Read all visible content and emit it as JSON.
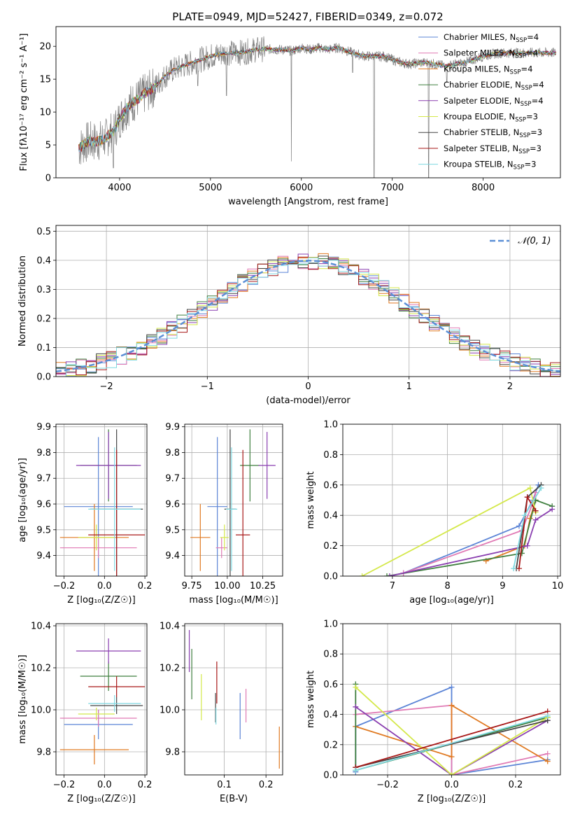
{
  "figure_title": "PLATE=0949, MJD=52427, FIBERID=0349, z=0.072",
  "colors": {
    "Chabrier MILES": "#5b84d6",
    "Salpeter MILES": "#e079b4",
    "Kroupa MILES": "#e07a22",
    "Chabrier ELODIE": "#3f7f3f",
    "Salpeter ELODIE": "#8a3fb0",
    "Kroupa ELODIE": "#d4e84a",
    "Chabrier STELIB": "#444444",
    "Salpeter STELIB": "#a81818",
    "Kroupa STELIB": "#7fd8e0",
    "data": "#808080",
    "grid": "#b0b0b0",
    "gaussian": "#5b8fd6"
  },
  "chart_data": [
    {
      "id": "spectrum",
      "type": "line",
      "title": "PLATE=0949, MJD=52427, FIBERID=0349, z=0.072",
      "xlabel": "wavelength [Angstrom, rest frame]",
      "ylabel": "Flux [fλ10⁻¹⁷ erg cm⁻² s⁻¹ A⁻¹]",
      "xlim": [
        3300,
        8850
      ],
      "ylim": [
        0,
        23
      ],
      "xticks": [
        4000,
        5000,
        6000,
        7000,
        8000
      ],
      "yticks": [
        0,
        5,
        10,
        15,
        20
      ],
      "grid": false,
      "legend_position": "right",
      "legend": [
        {
          "label": "Chabrier MILES, N",
          "sub": "SSP",
          "suffix": "=4",
          "model": "Chabrier MILES"
        },
        {
          "label": "Salpeter MILES, N",
          "sub": "SSP",
          "suffix": "=4",
          "model": "Salpeter MILES"
        },
        {
          "label": "Kroupa MILES, N",
          "sub": "SSP",
          "suffix": "=4",
          "model": "Kroupa MILES"
        },
        {
          "label": "Chabrier ELODIE, N",
          "sub": "SSP",
          "suffix": "=4",
          "model": "Chabrier ELODIE"
        },
        {
          "label": "Salpeter ELODIE, N",
          "sub": "SSP",
          "suffix": "=4",
          "model": "Salpeter ELODIE"
        },
        {
          "label": "Kroupa ELODIE, N",
          "sub": "SSP",
          "suffix": "=3",
          "model": "Kroupa ELODIE"
        },
        {
          "label": "Chabrier STELIB, N",
          "sub": "SSP",
          "suffix": "=3",
          "model": "Chabrier STELIB"
        },
        {
          "label": "Salpeter STELIB, N",
          "sub": "SSP",
          "suffix": "=3",
          "model": "Salpeter STELIB"
        },
        {
          "label": "Kroupa STELIB, N",
          "sub": "SSP",
          "suffix": "=3",
          "model": "Kroupa STELIB"
        }
      ],
      "continuum": {
        "x": [
          3550,
          3650,
          3750,
          3850,
          3950,
          4000,
          4100,
          4200,
          4300,
          4400,
          4500,
          4600,
          4700,
          4800,
          4900,
          5000,
          5100,
          5200,
          5300,
          5400,
          5500,
          5600,
          5700,
          5800,
          5900,
          6000,
          6100,
          6200,
          6300,
          6400,
          6500,
          6600,
          6700,
          6800,
          6900,
          7000,
          7100,
          7200,
          7300,
          7400,
          7500,
          7600,
          7700,
          7800,
          7900,
          8000,
          8100,
          8200,
          8300,
          8400,
          8500,
          8600,
          8700,
          8800
        ],
        "y": [
          4.5,
          5.5,
          5.5,
          6.0,
          7.5,
          9.0,
          11.0,
          12.0,
          13.0,
          14.0,
          15.5,
          16.5,
          17.0,
          17.5,
          18.0,
          18.5,
          18.8,
          19.0,
          19.0,
          19.2,
          19.5,
          19.6,
          19.5,
          19.5,
          19.3,
          19.8,
          19.5,
          19.8,
          19.5,
          19.8,
          19.3,
          18.8,
          18.5,
          18.5,
          18.5,
          18.0,
          17.5,
          17.3,
          17.5,
          17.5,
          17.2,
          17.0,
          17.3,
          17.5,
          18.0,
          18.5,
          18.8,
          19.0,
          19.0,
          19.0,
          19.0,
          19.0,
          19.0,
          19.0
        ]
      },
      "features": [
        {
          "x": 3933,
          "y": 1.5
        },
        {
          "x": 4861,
          "y": 14.0
        },
        {
          "x": 5175,
          "y": 12.5
        },
        {
          "x": 5890,
          "y": 2.5
        },
        {
          "x": 6563,
          "y": 16.0
        },
        {
          "x": 6800,
          "y": 0.0
        },
        {
          "x": 7400,
          "y": 0.0
        },
        {
          "x": 7600,
          "y": 14.5
        }
      ]
    },
    {
      "id": "residuals",
      "type": "histogram",
      "xlabel": "(data-model)/error",
      "ylabel": "Normed distribution",
      "xlim": [
        -2.5,
        2.5
      ],
      "ylim": [
        0,
        0.52
      ],
      "xticks": [
        -2,
        -1,
        0,
        1,
        2
      ],
      "yticks": [
        0.0,
        0.1,
        0.2,
        0.3,
        0.4,
        0.5
      ],
      "grid": true,
      "legend_position": "top-right",
      "gaussian_label": "𝒩(0, 1)",
      "bin_width": 0.1
    },
    {
      "id": "age-vs-Z",
      "type": "errorbar",
      "xlabel": "Z [log₁₀(Z/Z☉)]",
      "ylabel": "age  [log₁₀(age/yr)]",
      "xlim": [
        -0.24,
        0.21
      ],
      "ylim": [
        9.32,
        9.91
      ],
      "xticks": [
        -0.2,
        0.0,
        0.2
      ],
      "yticks": [
        9.4,
        9.5,
        9.6,
        9.7,
        9.8,
        9.9
      ],
      "grid": true,
      "points": [
        {
          "model": "Chabrier MILES",
          "x": -0.03,
          "xerr": 0.17,
          "y": 9.59,
          "yerr": 0.27
        },
        {
          "model": "Salpeter MILES",
          "x": -0.03,
          "xerr": 0.19,
          "y": 9.43,
          "yerr": 0.04
        },
        {
          "model": "Kroupa MILES",
          "x": -0.05,
          "xerr": 0.17,
          "y": 9.47,
          "yerr": 0.13
        },
        {
          "model": "Chabrier ELODIE",
          "x": 0.02,
          "xerr": 0.14,
          "y": 9.75,
          "yerr": 0.14
        },
        {
          "model": "Salpeter ELODIE",
          "x": 0.02,
          "xerr": 0.16,
          "y": 9.75,
          "yerr": 0.13
        },
        {
          "model": "Kroupa ELODIE",
          "x": -0.04,
          "xerr": 0.09,
          "y": 9.47,
          "yerr": 0.05
        },
        {
          "model": "Chabrier STELIB",
          "x": 0.06,
          "xerr": 0.13,
          "y": 9.58,
          "yerr": 0.31
        },
        {
          "model": "Salpeter STELIB",
          "x": 0.06,
          "xerr": 0.14,
          "y": 9.48,
          "yerr": 0.33
        },
        {
          "model": "Kroupa STELIB",
          "x": 0.05,
          "xerr": 0.13,
          "y": 9.58,
          "yerr": 0.24
        }
      ]
    },
    {
      "id": "age-vs-mass",
      "type": "errorbar",
      "xlabel": "mass [log₁₀(M/M☉)]",
      "ylabel": "",
      "xlim": [
        9.7,
        10.39
      ],
      "ylim": [
        9.32,
        9.91
      ],
      "xticks": [
        9.75,
        10.0,
        10.25
      ],
      "yticks": [
        9.4,
        9.5,
        9.6,
        9.7,
        9.8,
        9.9
      ],
      "grid": true,
      "points": [
        {
          "model": "Chabrier MILES",
          "x": 9.93,
          "xerr": 0.07,
          "y": 9.59,
          "yerr": 0.27
        },
        {
          "model": "Salpeter MILES",
          "x": 9.96,
          "xerr": 0.04,
          "y": 9.43,
          "yerr": 0.04
        },
        {
          "model": "Kroupa MILES",
          "x": 9.81,
          "xerr": 0.07,
          "y": 9.47,
          "yerr": 0.13
        },
        {
          "model": "Chabrier ELODIE",
          "x": 10.16,
          "xerr": 0.07,
          "y": 9.75,
          "yerr": 0.14
        },
        {
          "model": "Salpeter ELODIE",
          "x": 10.28,
          "xerr": 0.06,
          "y": 9.75,
          "yerr": 0.13
        },
        {
          "model": "Kroupa ELODIE",
          "x": 9.98,
          "xerr": 0.03,
          "y": 9.47,
          "yerr": 0.05
        },
        {
          "model": "Chabrier STELIB",
          "x": 10.02,
          "xerr": 0.04,
          "y": 9.58,
          "yerr": 0.31
        },
        {
          "model": "Salpeter STELIB",
          "x": 10.11,
          "xerr": 0.05,
          "y": 9.48,
          "yerr": 0.33
        },
        {
          "model": "Kroupa STELIB",
          "x": 10.03,
          "xerr": 0.04,
          "y": 9.58,
          "yerr": 0.24
        }
      ]
    },
    {
      "id": "mass-weight-vs-age",
      "type": "line",
      "xlabel": "age  [log₁₀(age/yr)]",
      "ylabel": "mass weight",
      "xlim": [
        6.1,
        10.05
      ],
      "ylim": [
        0,
        1.0
      ],
      "xticks": [
        7,
        8,
        9,
        10
      ],
      "yticks": [
        0.0,
        0.2,
        0.4,
        0.6,
        0.8,
        1.0
      ],
      "grid": true,
      "series": [
        {
          "model": "Chabrier MILES",
          "x": [
            7.2,
            9.3,
            9.55,
            9.65
          ],
          "y": [
            0.02,
            0.33,
            0.5,
            0.6
          ]
        },
        {
          "model": "Salpeter MILES",
          "x": [
            7.2,
            9.35,
            9.55,
            9.6
          ],
          "y": [
            0.02,
            0.3,
            0.48,
            0.55
          ]
        },
        {
          "model": "Kroupa MILES",
          "x": [
            8.7,
            9.4,
            9.5,
            9.6
          ],
          "y": [
            0.1,
            0.2,
            0.38,
            0.5
          ]
        },
        {
          "model": "Chabrier ELODIE",
          "x": [
            6.9,
            9.35,
            9.6,
            9.9
          ],
          "y": [
            0.0,
            0.15,
            0.5,
            0.46
          ]
        },
        {
          "model": "Salpeter ELODIE",
          "x": [
            6.95,
            9.45,
            9.6,
            9.9
          ],
          "y": [
            0.0,
            0.2,
            0.37,
            0.44
          ]
        },
        {
          "model": "Kroupa ELODIE",
          "x": [
            6.45,
            9.5,
            9.6
          ],
          "y": [
            0.0,
            0.58,
            0.42
          ]
        },
        {
          "model": "Chabrier STELIB",
          "x": [
            9.25,
            9.45,
            9.7
          ],
          "y": [
            0.05,
            0.52,
            0.6
          ]
        },
        {
          "model": "Salpeter STELIB",
          "x": [
            9.3,
            9.45,
            9.6
          ],
          "y": [
            0.05,
            0.52,
            0.43
          ]
        },
        {
          "model": "Kroupa STELIB",
          "x": [
            9.2,
            9.4,
            9.7
          ],
          "y": [
            0.05,
            0.4,
            0.58
          ]
        }
      ]
    },
    {
      "id": "mass-vs-Z",
      "type": "errorbar",
      "xlabel": "Z [log₁₀(Z/Z☉)]",
      "ylabel": "mass [log₁₀(M/M☉)]",
      "xlim": [
        -0.24,
        0.21
      ],
      "ylim": [
        9.69,
        10.41
      ],
      "xticks": [
        -0.2,
        0.0,
        0.2
      ],
      "yticks": [
        9.8,
        10.0,
        10.2,
        10.4
      ],
      "grid": true,
      "points": [
        {
          "model": "Chabrier MILES",
          "x": -0.03,
          "xerr": 0.17,
          "y": 9.93,
          "yerr": 0.07
        },
        {
          "model": "Salpeter MILES",
          "x": -0.03,
          "xerr": 0.19,
          "y": 9.96,
          "yerr": 0.04
        },
        {
          "model": "Kroupa MILES",
          "x": -0.05,
          "xerr": 0.17,
          "y": 9.81,
          "yerr": 0.07
        },
        {
          "model": "Chabrier ELODIE",
          "x": 0.02,
          "xerr": 0.14,
          "y": 10.16,
          "yerr": 0.07
        },
        {
          "model": "Salpeter ELODIE",
          "x": 0.02,
          "xerr": 0.16,
          "y": 10.28,
          "yerr": 0.06
        },
        {
          "model": "Kroupa ELODIE",
          "x": -0.04,
          "xerr": 0.09,
          "y": 9.98,
          "yerr": 0.03
        },
        {
          "model": "Chabrier STELIB",
          "x": 0.06,
          "xerr": 0.13,
          "y": 10.02,
          "yerr": 0.04
        },
        {
          "model": "Salpeter STELIB",
          "x": 0.06,
          "xerr": 0.14,
          "y": 10.11,
          "yerr": 0.05
        },
        {
          "model": "Kroupa STELIB",
          "x": 0.05,
          "xerr": 0.13,
          "y": 10.03,
          "yerr": 0.04
        }
      ]
    },
    {
      "id": "mass-vs-EBV",
      "type": "errorbar",
      "xlabel": "E(B-V)",
      "ylabel": "",
      "xlim": [
        0.005,
        0.24
      ],
      "ylim": [
        9.69,
        10.41
      ],
      "xticks": [
        0.1,
        0.2
      ],
      "yticks": [
        9.8,
        10.0,
        10.2,
        10.4
      ],
      "grid": true,
      "points": [
        {
          "model": "Chabrier MILES",
          "x": 0.138,
          "xerr": 0,
          "y": 9.97,
          "yerr": 0.11
        },
        {
          "model": "Salpeter MILES",
          "x": 0.152,
          "xerr": 0,
          "y": 10.02,
          "yerr": 0.08
        },
        {
          "model": "Kroupa MILES",
          "x": 0.232,
          "xerr": 0,
          "y": 9.82,
          "yerr": 0.1
        },
        {
          "model": "Chabrier ELODIE",
          "x": 0.022,
          "xerr": 0,
          "y": 10.17,
          "yerr": 0.12
        },
        {
          "model": "Salpeter ELODIE",
          "x": 0.016,
          "xerr": 0,
          "y": 10.28,
          "yerr": 0.1
        },
        {
          "model": "Kroupa ELODIE",
          "x": 0.045,
          "xerr": 0,
          "y": 10.06,
          "yerr": 0.11
        },
        {
          "model": "Chabrier STELIB",
          "x": 0.079,
          "xerr": 0,
          "y": 10.01,
          "yerr": 0.07
        },
        {
          "model": "Salpeter STELIB",
          "x": 0.082,
          "xerr": 0,
          "y": 10.13,
          "yerr": 0.1
        },
        {
          "model": "Kroupa STELIB",
          "x": 0.08,
          "xerr": 0,
          "y": 9.97,
          "yerr": 0.04
        }
      ]
    },
    {
      "id": "mass-weight-vs-Z",
      "type": "line",
      "xlabel": "Z [log₁₀(Z/Z☉)]",
      "ylabel": "mass weight",
      "xlim": [
        -0.34,
        0.34
      ],
      "ylim": [
        0,
        1.0
      ],
      "xticks": [
        -0.2,
        0.0,
        0.2
      ],
      "yticks": [
        0.0,
        0.2,
        0.4,
        0.6,
        0.8,
        1.0
      ],
      "grid": true,
      "series": [
        {
          "model": "Chabrier MILES",
          "x": [
            -0.3,
            -0.3,
            0.0,
            0.0,
            0.3
          ],
          "y": [
            0.02,
            0.32,
            0.58,
            0.0,
            0.1
          ]
        },
        {
          "model": "Salpeter MILES",
          "x": [
            -0.3,
            0.0,
            0.0,
            0.3
          ],
          "y": [
            0.4,
            0.46,
            0.0,
            0.14
          ]
        },
        {
          "model": "Kroupa MILES",
          "x": [
            -0.3,
            0.0,
            0.0,
            0.3
          ],
          "y": [
            0.32,
            0.12,
            0.46,
            0.09
          ]
        },
        {
          "model": "Chabrier ELODIE",
          "x": [
            -0.3,
            -0.3,
            0.3
          ],
          "y": [
            0.6,
            0.03,
            0.38
          ]
        },
        {
          "model": "Salpeter ELODIE",
          "x": [
            -0.3,
            0.0,
            0.3
          ],
          "y": [
            0.45,
            0.0,
            0.36
          ]
        },
        {
          "model": "Kroupa ELODIE",
          "x": [
            -0.3,
            0.0,
            0.3
          ],
          "y": [
            0.58,
            0.0,
            0.38
          ]
        },
        {
          "model": "Chabrier STELIB",
          "x": [
            -0.3,
            0.3
          ],
          "y": [
            0.05,
            0.36
          ]
        },
        {
          "model": "Salpeter STELIB",
          "x": [
            -0.3,
            0.3
          ],
          "y": [
            0.05,
            0.42
          ]
        },
        {
          "model": "Kroupa STELIB",
          "x": [
            -0.3,
            0.3
          ],
          "y": [
            0.03,
            0.39
          ]
        }
      ]
    }
  ]
}
